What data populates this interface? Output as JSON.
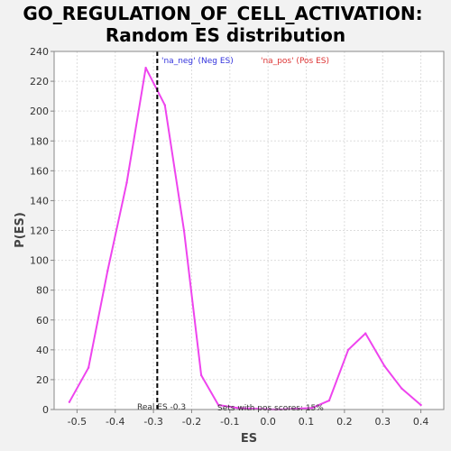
{
  "chart_data": {
    "type": "line",
    "title_lines": [
      "GO_REGULATION_OF_CELL_ACTIVATION:",
      "Random ES distribution"
    ],
    "xlabel": "ES",
    "ylabel": "P(ES)",
    "xlim": [
      -0.56,
      0.46
    ],
    "ylim": [
      0,
      240
    ],
    "x_ticks": [
      -0.5,
      -0.4,
      -0.3,
      -0.2,
      -0.1,
      0.0,
      0.1,
      0.2,
      0.3,
      0.4
    ],
    "x_tick_labels": [
      "-0.5",
      "-0.4",
      "-0.3",
      "-0.2",
      "-0.1",
      "0.0",
      "0.1",
      "0.2",
      "0.3",
      "0.4"
    ],
    "y_ticks": [
      0,
      20,
      40,
      60,
      80,
      100,
      120,
      140,
      160,
      180,
      200,
      220,
      240
    ],
    "y_tick_labels": [
      "0",
      "20",
      "40",
      "60",
      "80",
      "100",
      "120",
      "140",
      "160",
      "180",
      "200",
      "220",
      "240"
    ],
    "grid": true,
    "series": [
      {
        "name": "Random ES distribution",
        "color": "#ee44ee",
        "x": [
          -0.52,
          -0.47,
          -0.42,
          -0.37,
          -0.32,
          -0.27,
          -0.22,
          -0.175,
          -0.13,
          -0.08,
          -0.03,
          0.02,
          0.07,
          0.115,
          0.16,
          0.21,
          0.255,
          0.305,
          0.35,
          0.4
        ],
        "y": [
          5,
          28,
          93,
          152,
          229,
          204,
          120,
          23,
          3,
          1,
          0.5,
          0,
          0.5,
          1,
          6,
          40,
          51,
          29,
          14,
          3
        ]
      }
    ],
    "real_es": -0.29,
    "real_es_label": "Real ES -0.3",
    "pos_scores_label": "Sets with pos scores: 15%",
    "legend": [
      {
        "text": "'na_neg' (Neg ES)",
        "color": "#3333dd"
      },
      {
        "text": "'na_pos' (Pos ES)",
        "color": "#dd3333"
      }
    ],
    "legend_position": "top",
    "background_color": "#ffffff",
    "grid_color": "#dddddd"
  }
}
